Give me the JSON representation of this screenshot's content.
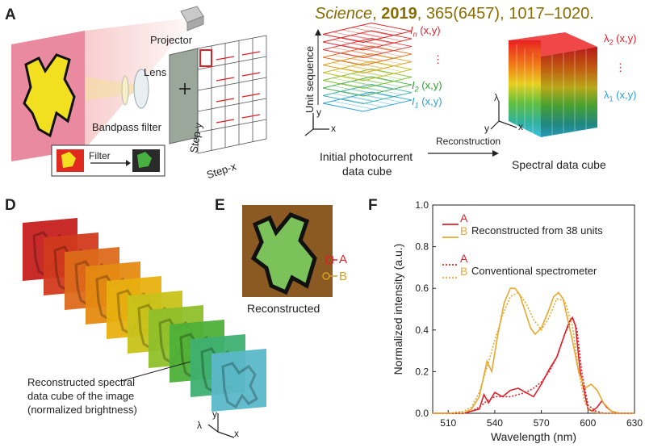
{
  "citation": {
    "journal": "Science",
    "year": "2019",
    "rest": ", 365(6457), 1017–1020."
  },
  "panel_a": {
    "label": "A",
    "projector": "Projector",
    "lens": "Lens",
    "bandpass": "Bandpass filter",
    "filter": "Filter",
    "step_y": "Step-y",
    "step_x": "Step-x",
    "unit_sequence": "Unit sequence",
    "initial_line1": "Initial photocurrent",
    "initial_line2": "data cube",
    "reconstruction": "Reconstruction",
    "spectral_cube": "Spectral data cube",
    "In": "I",
    "In_sub": "n",
    "I2": "I",
    "I2_sub": "2",
    "I1": "I",
    "I1_sub": "1",
    "xy": "(x,y)",
    "lam2": "λ",
    "lam2_sub": "2",
    "lam1": "λ",
    "lam1_sub": "1",
    "dots": "⋮",
    "axis_x": "x",
    "axis_y": "y",
    "axis_lambda": "λ",
    "colors": {
      "red": "#e0202a",
      "green": "#2aa02a",
      "blue": "#2aa0d8"
    }
  },
  "panel_d": {
    "label": "D",
    "caption_line1": "Reconstructed spectral",
    "caption_line2": "data cube of the image",
    "caption_line3": "(normalized brightness)",
    "axis_y": "y",
    "axis_x": "x",
    "axis_lambda": "λ",
    "layer_colors": [
      "#c62020",
      "#d23a1e",
      "#dd6a1a",
      "#e58a12",
      "#e8b010",
      "#c8c21a",
      "#8fc02a",
      "#4eb038",
      "#3fb070",
      "#5bb8c8"
    ]
  },
  "panel_e": {
    "label": "E",
    "caption": "Reconstructed",
    "marker_a": "A",
    "marker_b": "B"
  },
  "panel_f": {
    "label": "F",
    "legend_a1": "A",
    "legend_b1": "B",
    "legend_title1": "Reconstructed from 38 units",
    "legend_a2": "A",
    "legend_b2": "B",
    "legend_title2": "Conventional spectrometer"
  },
  "chart_data": {
    "type": "line",
    "xlabel": "Wavelength (nm)",
    "ylabel": "Normalized intensity (a.u.)",
    "xlim": [
      500,
      630
    ],
    "ylim": [
      0,
      1.0
    ],
    "xticks": [
      510,
      540,
      570,
      600,
      630
    ],
    "yticks": [
      0.0,
      0.2,
      0.4,
      0.6,
      0.8,
      1.0
    ],
    "legend": "top-right",
    "series": [
      {
        "name": "A",
        "group": "Reconstructed from 38 units",
        "color": "#e0202a",
        "dash": false,
        "x": [
          500,
          510,
          520,
          525,
          530,
          533,
          536,
          540,
          545,
          550,
          555,
          560,
          565,
          570,
          575,
          580,
          585,
          588,
          590,
          592,
          595,
          600,
          603,
          606,
          609,
          612,
          615,
          620,
          630
        ],
        "y": [
          0,
          0,
          0,
          0.01,
          0.02,
          0.09,
          0.05,
          0.1,
          0.08,
          0.11,
          0.12,
          0.1,
          0.08,
          0.14,
          0.21,
          0.27,
          0.38,
          0.44,
          0.46,
          0.42,
          0.2,
          0.02,
          0.01,
          0.03,
          0.06,
          0.03,
          0.01,
          0,
          0
        ]
      },
      {
        "name": "B",
        "group": "Reconstructed from 38 units",
        "color": "#e8a830",
        "dash": false,
        "x": [
          500,
          510,
          520,
          525,
          530,
          535,
          538,
          542,
          546,
          550,
          553,
          556,
          560,
          563,
          566,
          570,
          574,
          578,
          581,
          584,
          587,
          590,
          594,
          598,
          602,
          606,
          610,
          615,
          620,
          630
        ],
        "y": [
          0,
          0,
          0,
          0.02,
          0.08,
          0.25,
          0.2,
          0.38,
          0.53,
          0.6,
          0.6,
          0.57,
          0.48,
          0.41,
          0.38,
          0.41,
          0.48,
          0.56,
          0.58,
          0.55,
          0.45,
          0.35,
          0.2,
          0.12,
          0.14,
          0.11,
          0.05,
          0.01,
          0,
          0
        ]
      },
      {
        "name": "A",
        "group": "Conventional spectrometer",
        "color": "#e0202a",
        "dash": true,
        "x": [
          500,
          510,
          520,
          525,
          530,
          535,
          540,
          545,
          550,
          555,
          560,
          565,
          570,
          575,
          580,
          585,
          590,
          593,
          596,
          600,
          605,
          610,
          620,
          630
        ],
        "y": [
          0,
          0,
          0,
          0.01,
          0.03,
          0.06,
          0.08,
          0.08,
          0.08,
          0.09,
          0.1,
          0.12,
          0.15,
          0.2,
          0.27,
          0.38,
          0.46,
          0.4,
          0.2,
          0.04,
          0.01,
          0,
          0,
          0
        ]
      },
      {
        "name": "B",
        "group": "Conventional spectrometer",
        "color": "#e8a830",
        "dash": true,
        "x": [
          500,
          510,
          520,
          525,
          530,
          535,
          540,
          545,
          550,
          555,
          560,
          565,
          570,
          575,
          580,
          585,
          590,
          594,
          598,
          602,
          606,
          610,
          620,
          630
        ],
        "y": [
          0,
          0,
          0.01,
          0.03,
          0.1,
          0.22,
          0.35,
          0.47,
          0.56,
          0.58,
          0.53,
          0.45,
          0.4,
          0.46,
          0.55,
          0.54,
          0.42,
          0.2,
          0.05,
          0.01,
          0,
          0,
          0,
          0
        ]
      }
    ]
  }
}
